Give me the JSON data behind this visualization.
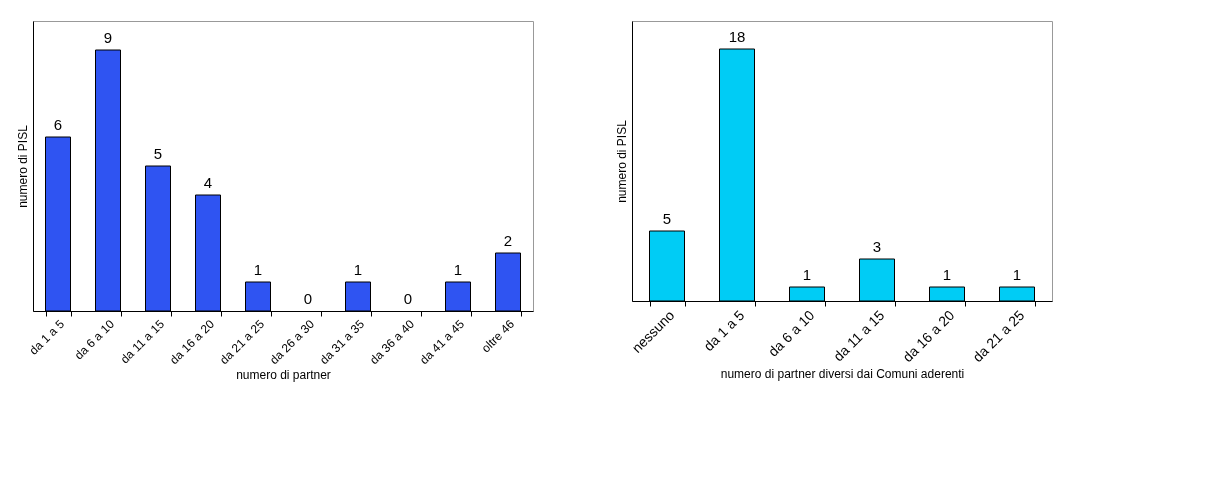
{
  "chart_data": [
    {
      "type": "bar",
      "xlabel": "numero di partner",
      "ylabel": "numero di PISL",
      "categories": [
        "da 1 a 5",
        "da 6 a 10",
        "da 11 a 15",
        "da 16 a 20",
        "da 21 a 25",
        "da 26 a 30",
        "da 31 a 35",
        "da 36 a 40",
        "da 41 a 45",
        "oltre 46"
      ],
      "values": [
        6,
        9,
        5,
        4,
        1,
        0,
        1,
        0,
        1,
        2
      ],
      "color": "#2f54f2",
      "ylim": [
        0,
        10
      ],
      "data_labels": true,
      "tick_labels": "x",
      "grid": false
    },
    {
      "type": "bar",
      "xlabel": "numero di partner diversi dai Comuni aderenti",
      "ylabel": "numero di PISL",
      "categories": [
        "nessuno",
        "da 1 a 5",
        "da 6 a 10",
        "da 11 a 15",
        "da 16 a 20",
        "da 21 a 25"
      ],
      "values": [
        5,
        18,
        1,
        3,
        1,
        1
      ],
      "color": "#00ccf5",
      "ylim": [
        0,
        20
      ],
      "data_labels": true,
      "tick_labels": "x",
      "grid": false
    }
  ]
}
